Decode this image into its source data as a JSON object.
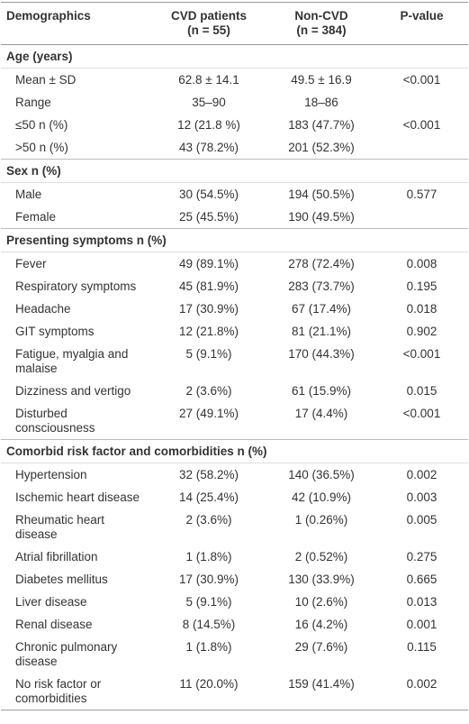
{
  "table": {
    "header": [
      [
        "Demographics"
      ],
      [
        "CVD patients",
        "(n = 55)"
      ],
      [
        "Non-CVD",
        "(n = 384)"
      ],
      [
        "P-value"
      ]
    ],
    "sections": [
      {
        "title": "Age (years)",
        "rows": [
          [
            "Mean ± SD",
            "62.8 ± 14.1",
            "49.5 ± 16.9",
            "<0.001"
          ],
          [
            "Range",
            "35–90",
            "18–86",
            null
          ],
          [
            "≤50 n (%)",
            "12 (21.8 %)",
            "183 (47.7%)",
            "<0.001"
          ],
          [
            ">50 n (%)",
            "43 (78.2%)",
            "201 (52.3%)",
            null
          ]
        ]
      },
      {
        "title": "Sex n (%)",
        "rows": [
          [
            "Male",
            "30 (54.5%)",
            "194 (50.5%)",
            "0.577"
          ],
          [
            "Female",
            "25 (45.5%)",
            "190 (49.5%)",
            null
          ]
        ]
      },
      {
        "title": "Presenting symptoms n (%)",
        "rows": [
          [
            "Fever",
            "49 (89.1%)",
            "278 (72.4%)",
            "0.008"
          ],
          [
            "Respiratory symptoms",
            "45 (81.9%)",
            "283 (73.7%)",
            "0.195"
          ],
          [
            "Headache",
            "17 (30.9%)",
            "67 (17.4%)",
            "0.018"
          ],
          [
            "GIT symptoms",
            "12 (21.8%)",
            "81 (21.1%)",
            "0.902"
          ],
          [
            "Fatigue, myalgia and malaise",
            "5 (9.1%)",
            "170 (44.3%)",
            "<0.001"
          ],
          [
            "Dizziness and vertigo",
            "2 (3.6%)",
            "61 (15.9%)",
            "0.015"
          ],
          [
            "Disturbed consciousness",
            "27 (49.1%)",
            "17 (4.4%)",
            "<0.001"
          ]
        ]
      },
      {
        "title": "Comorbid risk factor and comorbidities n (%)",
        "rows": [
          [
            "Hypertension",
            "32 (58.2%)",
            "140 (36.5%)",
            "0.002"
          ],
          [
            "Ischemic heart disease",
            "14 (25.4%)",
            "42 (10.9%)",
            "0.003"
          ],
          [
            "Rheumatic heart disease",
            "2 (3.6%)",
            "1 (0.26%)",
            "0.005"
          ],
          [
            "Atrial fibrillation",
            "1 (1.8%)",
            "2 (0.52%)",
            "0.275"
          ],
          [
            "Diabetes mellitus",
            "17 (30.9%)",
            "130 (33.9%)",
            "0.665"
          ],
          [
            "Liver disease",
            "5 (9.1%)",
            "10 (2.6%)",
            "0.013"
          ],
          [
            "Renal disease",
            "8 (14.5%)",
            "16 (4.2%)",
            "0.001"
          ],
          [
            "Chronic pulmonary disease",
            "1 (1.8%)",
            "29 (7.6%)",
            "0.115"
          ],
          [
            "No risk factor or comorbidities",
            "11 (20.0%)",
            "159 (41.4%)",
            "0.002"
          ]
        ]
      }
    ]
  }
}
